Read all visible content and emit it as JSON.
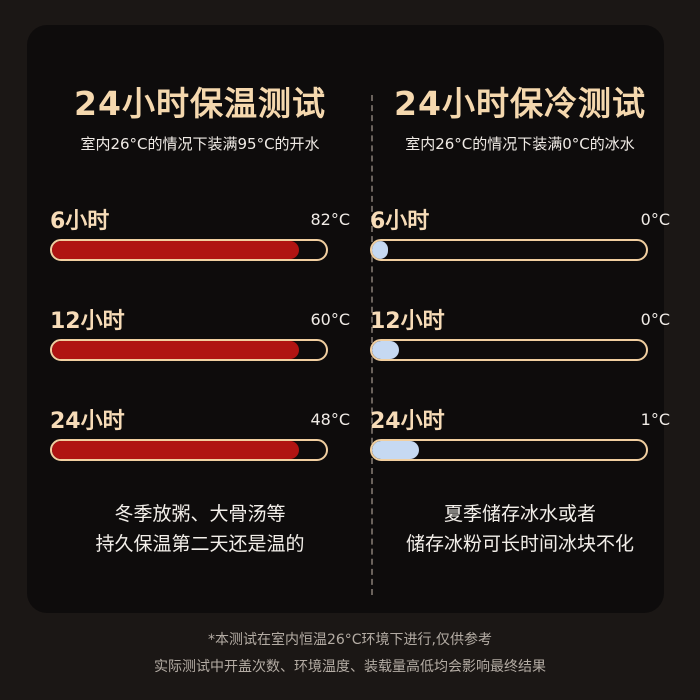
{
  "colors": {
    "hot_fill": "#b01412",
    "cold_fill": "#c6d9f2",
    "bar_border": "#f1cfa0",
    "title": "#f5d8ae"
  },
  "left": {
    "title": "24小时保温测试",
    "subtitle": "室内26°C的情况下装满95°C的开水",
    "rows": [
      {
        "label": "6小时",
        "value": "82°C",
        "fill_percent": 90
      },
      {
        "label": "12小时",
        "value": "60°C",
        "fill_percent": 90
      },
      {
        "label": "24小时",
        "value": "48°C",
        "fill_percent": 90
      }
    ],
    "note": [
      "冬季放粥、大骨汤等",
      "持久保温第二天还是温的"
    ]
  },
  "right": {
    "title": "24小时保冷测试",
    "subtitle": "室内26°C的情况下装满0°C的冰水",
    "rows": [
      {
        "label": "6小时",
        "value": "0°C",
        "fill_percent": 6
      },
      {
        "label": "12小时",
        "value": "0°C",
        "fill_percent": 10
      },
      {
        "label": "24小时",
        "value": "1°C",
        "fill_percent": 17
      }
    ],
    "note": [
      "夏季储存冰水或者",
      "储存冰粉可长时间冰块不化"
    ]
  },
  "footer": [
    "*本测试在室内恒温26°C环境下进行,仅供参考",
    "实际测试中开盖次数、环境温度、装载量高低均会影响最终结果"
  ]
}
